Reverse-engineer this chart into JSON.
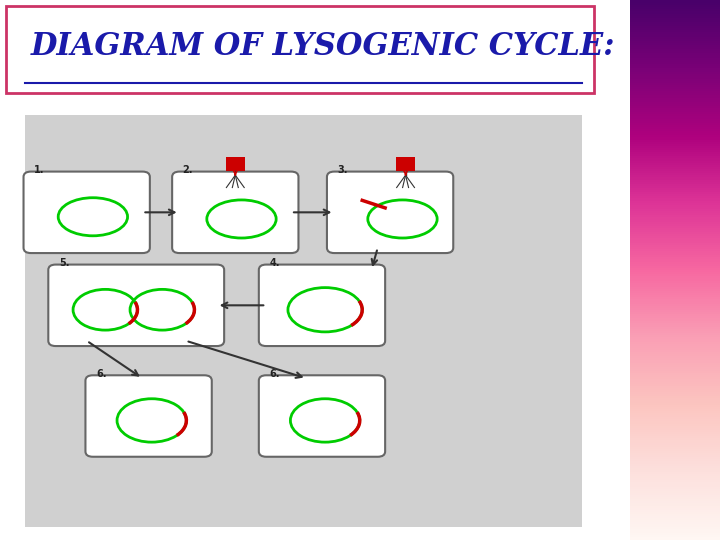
{
  "title": "DIAGRAM OF LYSOGENIC CYCLE:",
  "title_color": "#1a1aaa",
  "title_fontsize": 22,
  "background_color": "#d8d8d8",
  "slide_bg": "#ffffff",
  "right_bar_color": "#8b1a5a",
  "box_bg": "#ffffff",
  "box_edge": "#888888",
  "green_color": "#00cc00",
  "red_color": "#cc0000",
  "arrow_color": "#333333",
  "b1": [
    0.14,
    0.74,
    0.18,
    0.16
  ],
  "b2": [
    0.38,
    0.74,
    0.18,
    0.16
  ],
  "b3": [
    0.63,
    0.74,
    0.18,
    0.16
  ],
  "b4": [
    0.52,
    0.53,
    0.18,
    0.16
  ],
  "b5": [
    0.22,
    0.53,
    0.26,
    0.16
  ],
  "b6a": [
    0.24,
    0.28,
    0.18,
    0.16
  ],
  "b6b": [
    0.52,
    0.28,
    0.18,
    0.16
  ]
}
